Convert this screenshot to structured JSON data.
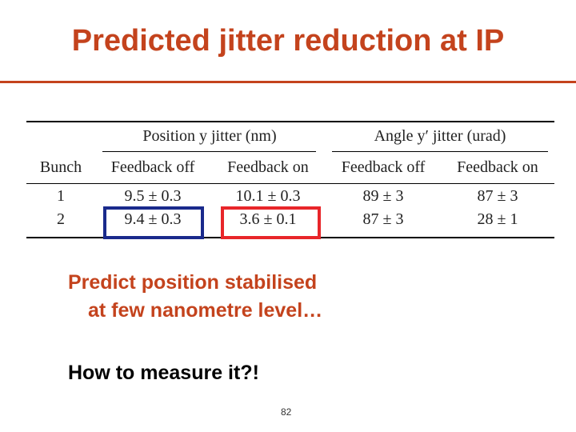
{
  "header": {
    "title": "Predicted jitter reduction at IP"
  },
  "table": {
    "group_headers": [
      "Position y jitter (nm)",
      "Angle y′ jitter (urad)"
    ],
    "columns": [
      "Bunch",
      "Feedback off",
      "Feedback on",
      "Feedback off",
      "Feedback on"
    ],
    "rows": [
      [
        "1",
        "9.5 ± 0.3",
        "10.1 ± 0.3",
        "89 ± 3",
        "87 ± 3"
      ],
      [
        "2",
        "9.4 ± 0.3",
        "3.6 ± 0.1",
        "87 ± 3",
        "28 ± 1"
      ]
    ]
  },
  "body": {
    "lines": [
      "Predict position stabilised",
      "at few nanometre level…",
      "How to measure it?!"
    ]
  },
  "footer": {
    "page_number": "82"
  }
}
